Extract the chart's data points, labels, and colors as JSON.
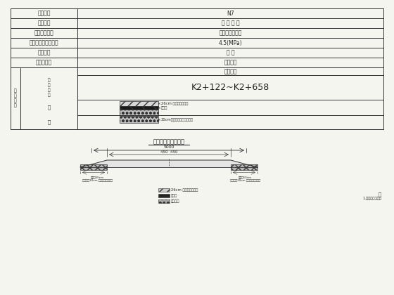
{
  "bg_color": "#f5f5f0",
  "border_color": "#333333",
  "table_rows": [
    {
      "label": "道路区域",
      "value": "N7"
    },
    {
      "label": "道路等级",
      "value": "普 通 道 路"
    },
    {
      "label": "面层路面类型",
      "value": "水泥混凝土路面"
    },
    {
      "label": "水泥标号强度标准值",
      "value": "4.5(MPa)"
    },
    {
      "label": "设计年限",
      "value": "普 通"
    },
    {
      "label": "基基床类型",
      "value": "普通类型"
    }
  ],
  "sub_col1": "结构形式",
  "sub_row1_value": "K2+122~K2+658",
  "layer_text1": "26cm 水泥混凝土路面",
  "layer_text2": "石灰土",
  "layer_text3": "30cm级配碎石垫层稳定砂砂",
  "cross_title": "老路局部回填横断面",
  "dim_total": "5000",
  "dim_left_label": "450",
  "dim_right_label": "450",
  "dim_side": "50",
  "shoulder_label_left": "路肩兦60cm\n公路路基30cm 级配碎石稳定砂砂",
  "shoulder_label_right": "路肩兦60cm\n公路路基30cm 级配碎石稳定砂砂",
  "legend_items": [
    {
      "text": "26cm 水泥混凝土路面",
      "hatch": "///",
      "fc": "#cccccc"
    },
    {
      "text": "石灰土",
      "hatch": "---",
      "fc": "#222222"
    },
    {
      "text": "级配砂砂",
      "hatch": "ooo",
      "fc": "#aaaaaa"
    }
  ],
  "note": "注",
  "note_detail": "1.桦号范围为标注"
}
